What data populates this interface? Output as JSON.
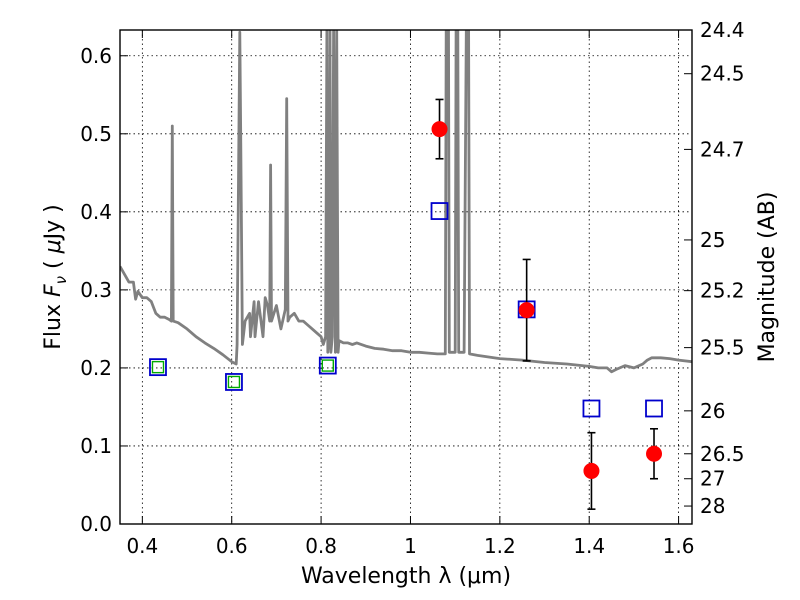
{
  "chart_data": {
    "type": "scatter",
    "xlabel": "Wavelength  λ (μm)",
    "ylabel": "Flux  F_ν  ( μJy )",
    "ylabel_parts": {
      "pre": "Flux  ",
      "var": "F",
      "sub": "ν",
      "mid": "  ( ",
      "unit_mu": "μ",
      "unit": "Jy )"
    },
    "ylabel_right": "Magnitude (AB)",
    "xlim": [
      0.35,
      1.63
    ],
    "ylim": [
      0.0,
      0.633
    ],
    "x_ticks": [
      "0.4",
      "0.6",
      "0.8",
      "1",
      "1.2",
      "1.4",
      "1.6"
    ],
    "y_ticks": [
      "0.0",
      "0.1",
      "0.2",
      "0.3",
      "0.4",
      "0.5",
      "0.6"
    ],
    "right_ticks": [
      {
        "label": "24.4",
        "flux": 0.633
      },
      {
        "label": "24.5",
        "flux": 0.577
      },
      {
        "label": "24.7",
        "flux": 0.48
      },
      {
        "label": "25",
        "flux": 0.364
      },
      {
        "label": "25.2",
        "flux": 0.299
      },
      {
        "label": "25.5",
        "flux": 0.226
      },
      {
        "label": "26",
        "flux": 0.145
      },
      {
        "label": "26.5",
        "flux": 0.09
      },
      {
        "label": "27",
        "flux": 0.058
      },
      {
        "label": "28",
        "flux": 0.023
      }
    ],
    "grid": true,
    "colors": {
      "spectrum": "#808080",
      "observed": "#ff0000",
      "model_box": "#0000cc",
      "model_inner": "#00aa00",
      "errorbar": "#000000"
    },
    "series": [
      {
        "kind": "spectrum",
        "points": [
          [
            0.35,
            0.33
          ],
          [
            0.36,
            0.32
          ],
          [
            0.37,
            0.31
          ],
          [
            0.38,
            0.31
          ],
          [
            0.385,
            0.288
          ],
          [
            0.39,
            0.298
          ],
          [
            0.4,
            0.29
          ],
          [
            0.41,
            0.29
          ],
          [
            0.42,
            0.285
          ],
          [
            0.43,
            0.27
          ],
          [
            0.44,
            0.265
          ],
          [
            0.45,
            0.265
          ],
          [
            0.46,
            0.262
          ],
          [
            0.465,
            0.26
          ],
          [
            0.467,
            0.51
          ],
          [
            0.469,
            0.26
          ],
          [
            0.48,
            0.258
          ],
          [
            0.5,
            0.25
          ],
          [
            0.52,
            0.24
          ],
          [
            0.54,
            0.232
          ],
          [
            0.56,
            0.225
          ],
          [
            0.58,
            0.217
          ],
          [
            0.6,
            0.208
          ],
          [
            0.61,
            0.205
          ],
          [
            0.612,
            0.23
          ],
          [
            0.616,
            0.5
          ],
          [
            0.618,
            0.63
          ],
          [
            0.62,
            0.5
          ],
          [
            0.624,
            0.23
          ],
          [
            0.63,
            0.26
          ],
          [
            0.64,
            0.27
          ],
          [
            0.642,
            0.24
          ],
          [
            0.65,
            0.285
          ],
          [
            0.652,
            0.24
          ],
          [
            0.66,
            0.285
          ],
          [
            0.67,
            0.24
          ],
          [
            0.675,
            0.29
          ],
          [
            0.68,
            0.28
          ],
          [
            0.685,
            0.26
          ],
          [
            0.687,
            0.46
          ],
          [
            0.689,
            0.26
          ],
          [
            0.7,
            0.28
          ],
          [
            0.71,
            0.25
          ],
          [
            0.72,
            0.275
          ],
          [
            0.723,
            0.545
          ],
          [
            0.726,
            0.26
          ],
          [
            0.73,
            0.265
          ],
          [
            0.74,
            0.27
          ],
          [
            0.75,
            0.26
          ],
          [
            0.76,
            0.26
          ],
          [
            0.77,
            0.255
          ],
          [
            0.78,
            0.25
          ],
          [
            0.79,
            0.245
          ],
          [
            0.8,
            0.24
          ],
          [
            0.805,
            0.23
          ],
          [
            0.81,
            0.24
          ],
          [
            0.813,
            0.633
          ],
          [
            0.815,
            0.22
          ],
          [
            0.818,
            0.24
          ],
          [
            0.82,
            0.633
          ],
          [
            0.822,
            0.22
          ],
          [
            0.825,
            0.24
          ],
          [
            0.828,
            0.633
          ],
          [
            0.832,
            0.22
          ],
          [
            0.835,
            0.633
          ],
          [
            0.838,
            0.22
          ],
          [
            0.84,
            0.235
          ],
          [
            0.85,
            0.232
          ],
          [
            0.86,
            0.232
          ],
          [
            0.87,
            0.23
          ],
          [
            0.88,
            0.232
          ],
          [
            0.9,
            0.228
          ],
          [
            0.92,
            0.225
          ],
          [
            0.94,
            0.224
          ],
          [
            0.96,
            0.222
          ],
          [
            0.98,
            0.222
          ],
          [
            1.0,
            0.22
          ],
          [
            1.02,
            0.22
          ],
          [
            1.04,
            0.219
          ],
          [
            1.06,
            0.218
          ],
          [
            1.07,
            0.218
          ],
          [
            1.078,
            0.218
          ],
          [
            1.08,
            0.633
          ],
          [
            1.085,
            0.633
          ],
          [
            1.087,
            0.22
          ],
          [
            1.09,
            0.22
          ],
          [
            1.1,
            0.22
          ],
          [
            1.102,
            0.633
          ],
          [
            1.106,
            0.633
          ],
          [
            1.108,
            0.22
          ],
          [
            1.11,
            0.22
          ],
          [
            1.12,
            0.22
          ],
          [
            1.125,
            0.633
          ],
          [
            1.13,
            0.633
          ],
          [
            1.132,
            0.218
          ],
          [
            1.15,
            0.216
          ],
          [
            1.2,
            0.212
          ],
          [
            1.25,
            0.21
          ],
          [
            1.3,
            0.207
          ],
          [
            1.35,
            0.205
          ],
          [
            1.4,
            0.202
          ],
          [
            1.42,
            0.2
          ],
          [
            1.44,
            0.2
          ],
          [
            1.45,
            0.195
          ],
          [
            1.46,
            0.198
          ],
          [
            1.48,
            0.203
          ],
          [
            1.5,
            0.2
          ],
          [
            1.52,
            0.205
          ],
          [
            1.53,
            0.21
          ],
          [
            1.54,
            0.213
          ],
          [
            1.56,
            0.213
          ],
          [
            1.58,
            0.212
          ],
          [
            1.6,
            0.21
          ],
          [
            1.63,
            0.208
          ]
        ]
      },
      {
        "kind": "observed",
        "points": [
          {
            "x": 1.065,
            "y": 0.506,
            "err": 0.038
          },
          {
            "x": 1.26,
            "y": 0.274,
            "err": 0.065
          },
          {
            "x": 1.405,
            "y": 0.068,
            "err": 0.049
          },
          {
            "x": 1.545,
            "y": 0.09,
            "err": 0.032
          }
        ]
      },
      {
        "kind": "model",
        "points": [
          {
            "x": 0.435,
            "y": 0.201,
            "inner": true
          },
          {
            "x": 0.605,
            "y": 0.182,
            "inner": true
          },
          {
            "x": 0.815,
            "y": 0.203,
            "inner": true
          },
          {
            "x": 1.065,
            "y": 0.401,
            "inner": false
          },
          {
            "x": 1.26,
            "y": 0.275,
            "inner": false
          },
          {
            "x": 1.405,
            "y": 0.148,
            "inner": false
          },
          {
            "x": 1.545,
            "y": 0.148,
            "inner": false
          }
        ]
      }
    ]
  }
}
